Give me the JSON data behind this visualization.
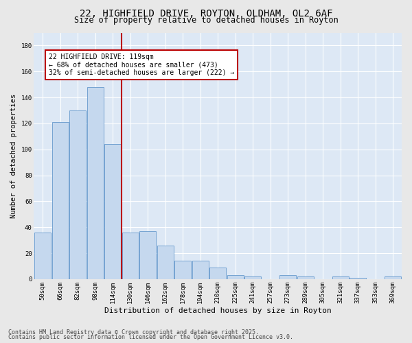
{
  "title_line1": "22, HIGHFIELD DRIVE, ROYTON, OLDHAM, OL2 6AF",
  "title_line2": "Size of property relative to detached houses in Royton",
  "xlabel": "Distribution of detached houses by size in Royton",
  "ylabel": "Number of detached properties",
  "bar_color": "#c5d8ee",
  "bar_edge_color": "#6699cc",
  "background_color": "#dde8f5",
  "grid_color": "#ffffff",
  "vline_color": "#bb0000",
  "vline_x": 4.5,
  "annotation_text": "22 HIGHFIELD DRIVE: 119sqm\n← 68% of detached houses are smaller (473)\n32% of semi-detached houses are larger (222) →",
  "footer_line1": "Contains HM Land Registry data © Crown copyright and database right 2025.",
  "footer_line2": "Contains public sector information licensed under the Open Government Licence v3.0.",
  "categories": [
    "50sqm",
    "66sqm",
    "82sqm",
    "98sqm",
    "114sqm",
    "130sqm",
    "146sqm",
    "162sqm",
    "178sqm",
    "194sqm",
    "210sqm",
    "225sqm",
    "241sqm",
    "257sqm",
    "273sqm",
    "289sqm",
    "305sqm",
    "321sqm",
    "337sqm",
    "353sqm",
    "369sqm"
  ],
  "values": [
    36,
    121,
    130,
    148,
    104,
    36,
    37,
    26,
    14,
    14,
    9,
    3,
    2,
    0,
    3,
    2,
    0,
    2,
    1,
    0,
    2
  ],
  "ylim": [
    0,
    190
  ],
  "yticks": [
    0,
    20,
    40,
    60,
    80,
    100,
    120,
    140,
    160,
    180
  ],
  "title_fontsize": 10,
  "subtitle_fontsize": 8.5,
  "tick_fontsize": 6.5,
  "ylabel_fontsize": 7.5,
  "xlabel_fontsize": 8,
  "footer_fontsize": 6,
  "annot_fontsize": 7
}
